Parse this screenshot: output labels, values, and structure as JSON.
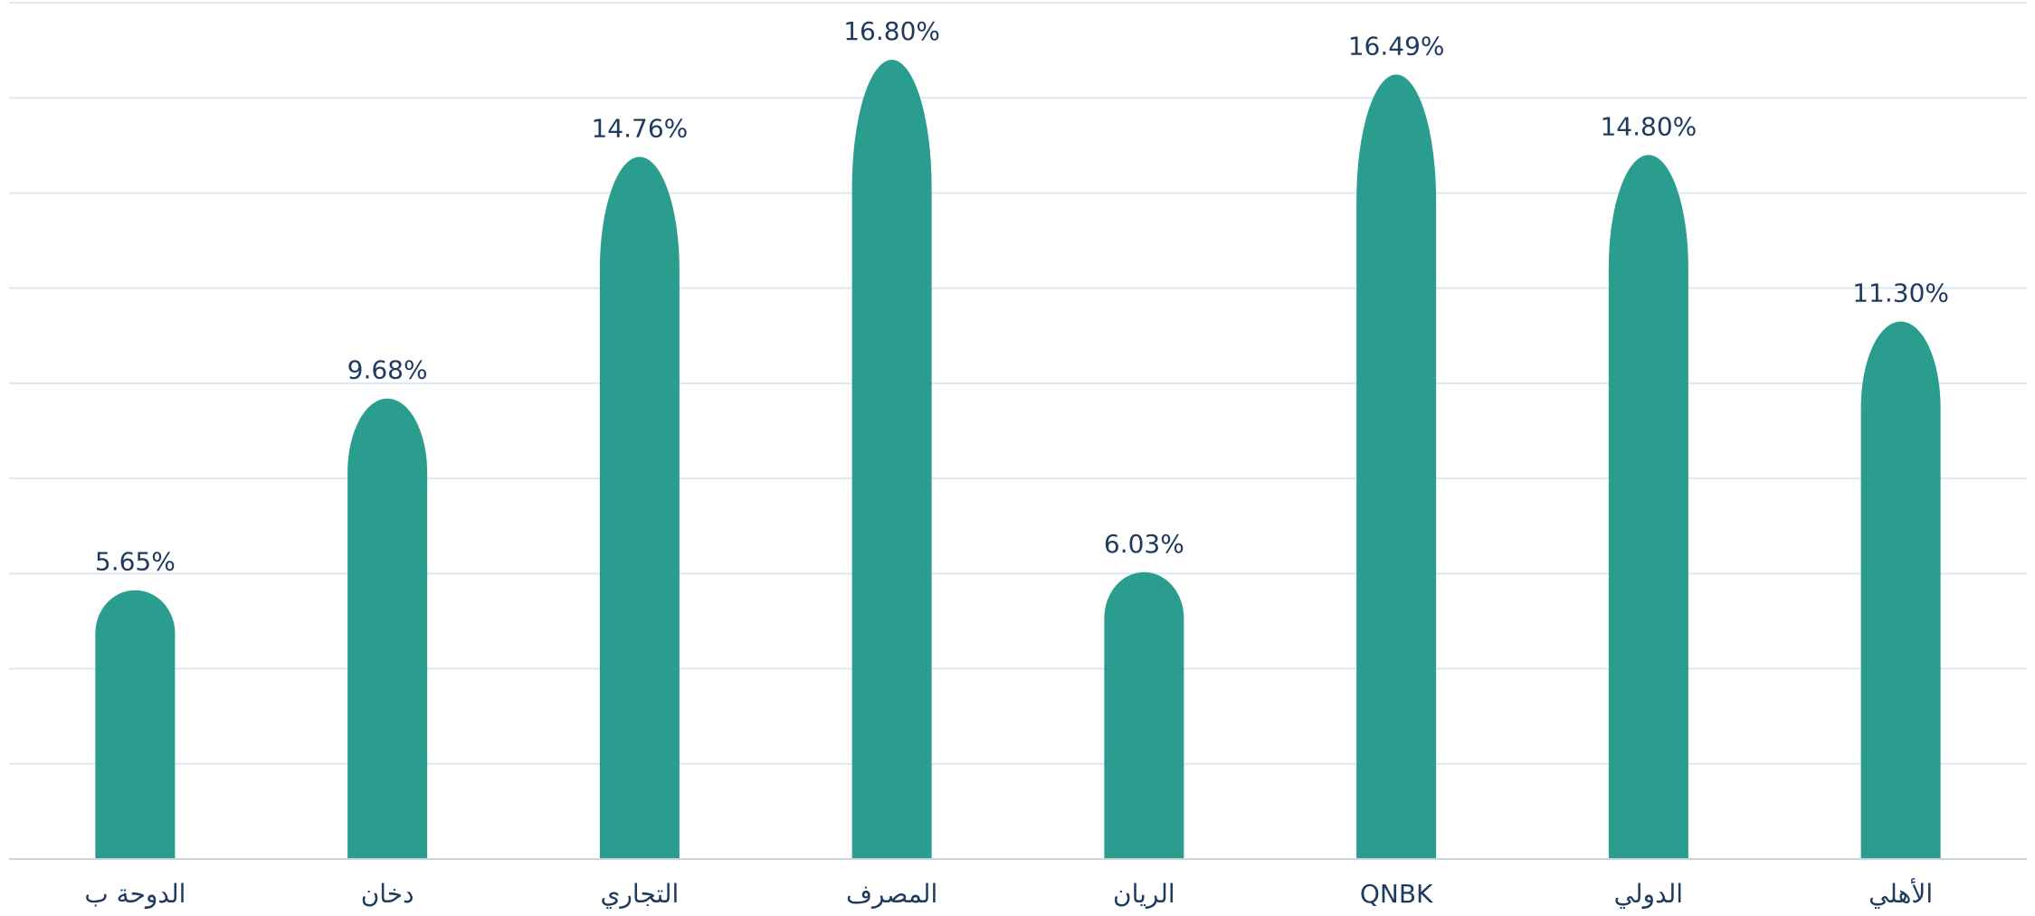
{
  "chart_data": {
    "type": "bar",
    "categories": [
      "الدوحة ب",
      "دخان",
      "التجاري",
      "المصرف",
      "الريان",
      "QNBK",
      "الدولي",
      "الأهلي"
    ],
    "values": [
      5.65,
      9.68,
      14.76,
      16.8,
      6.03,
      16.49,
      14.8,
      11.3
    ],
    "value_labels": [
      "5.65%",
      "9.68%",
      "14.76%",
      "16.80%",
      "6.03%",
      "16.49%",
      "14.80%",
      "11.30%"
    ],
    "color": "#2a9d8f",
    "ylim": [
      0,
      18
    ],
    "yticks": [
      0,
      2,
      4,
      6,
      8,
      10,
      12,
      14,
      16,
      18
    ],
    "grid": true
  }
}
